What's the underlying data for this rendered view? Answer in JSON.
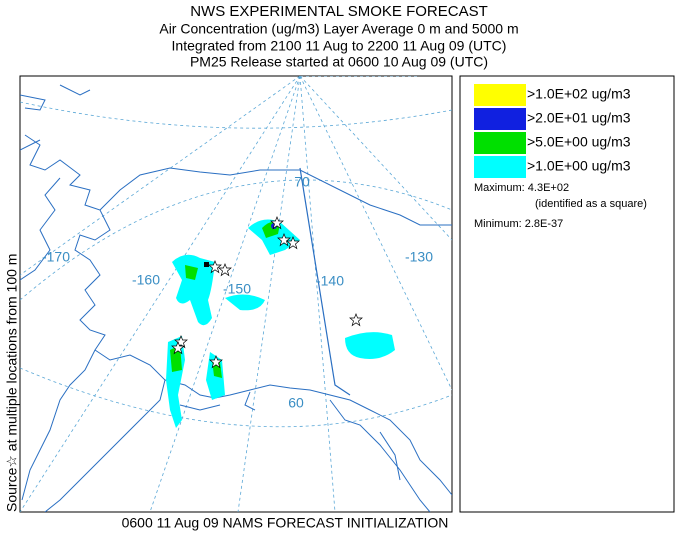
{
  "header": {
    "lines": [
      "NWS EXPERIMENTAL SMOKE FORECAST",
      "Air Concentration (ug/m3) Layer Average    0 m and  5000 m",
      "Integrated from 2100 11 Aug to 2200 11 Aug 09 (UTC)",
      "PM25 Release started at 0600 10 Aug 09 (UTC)"
    ]
  },
  "side_label": "Source☆  at multiple locations   from   100 m",
  "map": {
    "labels": [
      "70",
      "-170",
      "-160",
      "-150",
      "-140",
      "-130",
      "60"
    ]
  },
  "legend": {
    "entries": [
      {
        "label": ">1.0E+02 ug/m3",
        "color": "#ffff00"
      },
      {
        "label": ">2.0E+01 ug/m3",
        "color": "#1020e0"
      },
      {
        "label": ">5.0E+00 ug/m3",
        "color": "#00e000"
      },
      {
        "label": ">1.0E+00 ug/m3",
        "color": "#00ffff"
      }
    ],
    "maximum": "Maximum: 4.3E+02",
    "maximum_note": "(identified as a square)",
    "minimum": "Minimum: 2.8E-37"
  },
  "footer": "0600 11 Aug 09 NAMS FORECAST INITIALIZATION"
}
